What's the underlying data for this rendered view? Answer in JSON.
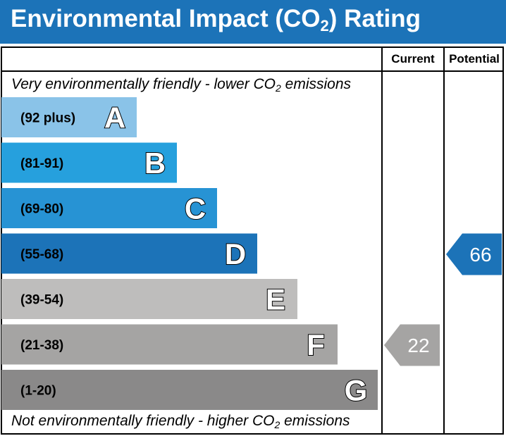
{
  "header": {
    "title_main": "Environmental Impact (CO",
    "title_sub": "2",
    "title_end": ") Rating"
  },
  "columns": {
    "current": "Current",
    "potential": "Potential"
  },
  "notes": {
    "top_main": "Very environmentally friendly - lower CO",
    "top_sub": "2",
    "top_end": " emissions",
    "bottom_main": "Not environmentally friendly - higher CO",
    "bottom_sub": "2",
    "bottom_end": " emissions"
  },
  "chart_data": {
    "type": "bar",
    "title": "Environmental Impact (CO2) Rating",
    "categories": [
      "A",
      "B",
      "C",
      "D",
      "E",
      "F",
      "G"
    ],
    "ranges": [
      "(92 plus)",
      "(81-91)",
      "(69-80)",
      "(55-68)",
      "(39-54)",
      "(21-38)",
      "(1-20)"
    ],
    "colors": [
      "#8ac3e8",
      "#26a0dd",
      "#2793d4",
      "#1c73b8",
      "#bebdbc",
      "#a5a4a3",
      "#8a8989"
    ],
    "current": {
      "value": 22,
      "band": "F",
      "color": "#a5a4a3"
    },
    "potential": {
      "value": 66,
      "band": "D",
      "color": "#1c73b8"
    }
  }
}
